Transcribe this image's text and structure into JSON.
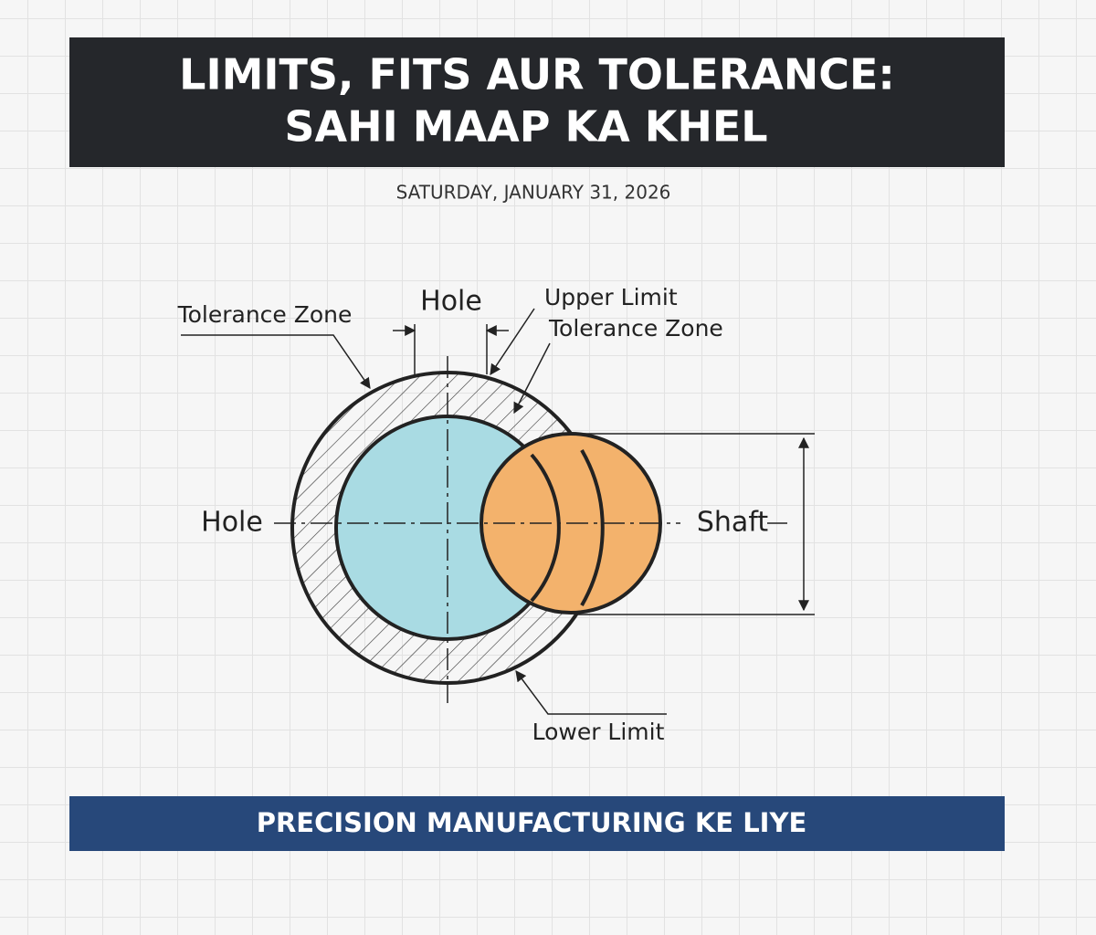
{
  "header": {
    "title_lines": [
      "LIMITS, FITS AUR TOLERANCE:",
      "SAHI MAAP KA KHEL"
    ]
  },
  "date": "SATURDAY, JANUARY 31, 2026",
  "diagram": {
    "labels": {
      "tolerance_zone_left": "Tolerance Zone",
      "hole_top": "Hole",
      "upper_limit": "Upper Limit",
      "tolerance_zone_right": "Tolerance Zone",
      "hole_left": "Hole",
      "shaft": "Shaft",
      "lower_limit": "Lower Limit"
    }
  },
  "footer": {
    "text": "PRECISION MANUFACTURING KE LIYE"
  }
}
